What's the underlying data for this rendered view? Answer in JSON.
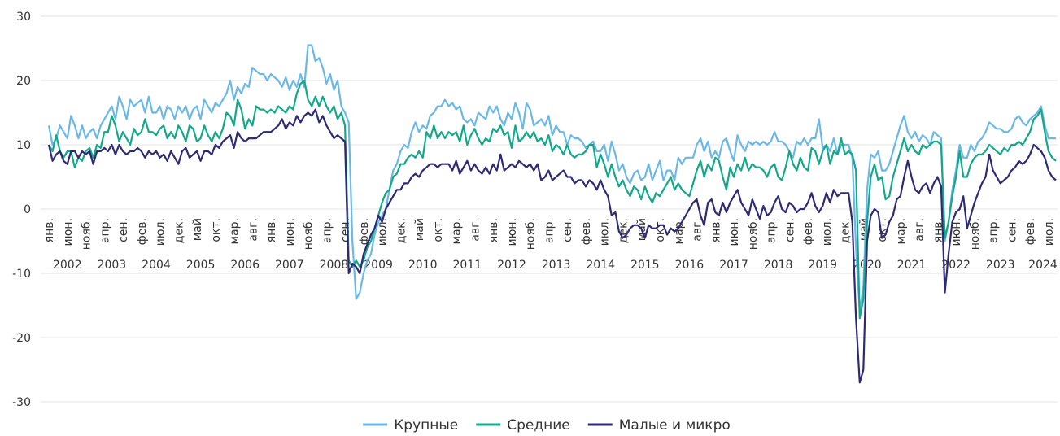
{
  "chart_data": {
    "type": "line",
    "categories": [
      "янв.",
      null,
      null,
      null,
      null,
      "июн.",
      null,
      null,
      null,
      null,
      "нояб.",
      null,
      null,
      null,
      null,
      "апр.",
      null,
      null,
      null,
      null,
      "сен.",
      null,
      null,
      null,
      null,
      "фев.",
      null,
      null,
      null,
      null,
      "июл.",
      null,
      null,
      null,
      null,
      "дек.",
      null,
      null,
      null,
      null,
      "май",
      null,
      null,
      null,
      null,
      "окт.",
      null,
      null,
      null,
      null,
      "мар.",
      null,
      null,
      null,
      null,
      "авг.",
      null,
      null,
      null,
      null,
      "янв.",
      null,
      null,
      null,
      null,
      "июн.",
      null,
      null,
      null,
      null,
      "нояб.",
      null,
      null,
      null,
      null,
      "апр.",
      null,
      null,
      null,
      null,
      "сен.",
      null,
      null,
      null,
      null,
      "фев.",
      null,
      null,
      null,
      null,
      "июл.",
      null,
      null,
      null,
      null,
      "дек.",
      null,
      null,
      null,
      null,
      "май",
      null,
      null,
      null,
      null,
      "окт.",
      null,
      null,
      null,
      null,
      "мар.",
      null,
      null,
      null,
      null,
      "авг.",
      null,
      null,
      null,
      null,
      "янв.",
      null,
      null,
      null,
      null,
      "июн.",
      null,
      null,
      null,
      null,
      "нояб.",
      null,
      null,
      null,
      null,
      "апр.",
      null,
      null,
      null,
      null,
      "сен.",
      null,
      null,
      null,
      null,
      "фев.",
      null,
      null,
      null,
      null,
      "июл.",
      null,
      null,
      null,
      null,
      "дек.",
      null,
      null,
      null,
      null,
      "май",
      null,
      null,
      null,
      null,
      "окт.",
      null,
      null,
      null,
      null,
      "мар.",
      null,
      null,
      null,
      null,
      "авг.",
      null,
      null,
      null,
      null,
      "янв.",
      null,
      null,
      null,
      null,
      "июн.",
      null,
      null,
      null,
      null,
      "нояб.",
      null,
      null,
      null,
      null,
      "апр.",
      null,
      null,
      null,
      null,
      "сен.",
      null,
      null,
      null,
      null,
      "фев.",
      null,
      null,
      null,
      null,
      "июл.",
      null,
      null,
      null,
      null,
      "дек.",
      null,
      null,
      null,
      null,
      "май",
      null,
      null,
      null,
      null,
      "окт.",
      null,
      null,
      null,
      null,
      "мар.",
      null,
      null,
      null,
      null,
      "авг.",
      null,
      null,
      null,
      null,
      "янв.",
      null,
      null,
      null,
      null,
      "июн.",
      null,
      null,
      null,
      null,
      "нояб.",
      null,
      null,
      null,
      null,
      "апр.",
      null,
      null,
      null,
      null,
      "сен.",
      null,
      null,
      null,
      null,
      "фев.",
      null,
      null,
      null,
      null,
      "июл.",
      null,
      null
    ],
    "years": [
      "2002",
      "2003",
      "2004",
      "2005",
      "2006",
      "2007",
      "2008",
      "2009",
      "2010",
      "2011",
      "2012",
      "2013",
      "2014",
      "2015",
      "2016",
      "2017",
      "2018",
      "2019",
      "2020",
      "2021",
      "2022",
      "2023",
      "2024"
    ],
    "ylim": [
      -30,
      30
    ],
    "yticks": [
      -30,
      -20,
      -10,
      0,
      10,
      20,
      30
    ],
    "grid": true,
    "legend": "bottom",
    "series": [
      {
        "name": "Крупные",
        "color": "#6bb8e6",
        "values": [
          13,
          10,
          11,
          13,
          12,
          11,
          14.5,
          13,
          11,
          13,
          11,
          12,
          12.5,
          11,
          13,
          14,
          15,
          16,
          14,
          17.5,
          16,
          14,
          17,
          16,
          16.5,
          17,
          15,
          17.5,
          15,
          15,
          16,
          14,
          16,
          15.5,
          14,
          16,
          15,
          16,
          14,
          15.5,
          16,
          14,
          17,
          16,
          15,
          16.5,
          16,
          17,
          18,
          20,
          17,
          19,
          18,
          19.5,
          19,
          22,
          21.5,
          21,
          21,
          20,
          21,
          20.5,
          20,
          19,
          20.5,
          18.5,
          20,
          19,
          21,
          19,
          25.5,
          25.5,
          23,
          23.5,
          22,
          19.5,
          21,
          18.5,
          20,
          16,
          15,
          13.5,
          -5,
          -14,
          -13,
          -10,
          -8,
          -7,
          -4,
          -2,
          -1,
          0,
          3,
          6,
          7,
          9,
          10,
          9.5,
          12,
          13.5,
          12,
          13,
          12.5,
          14.5,
          15,
          16,
          16,
          17,
          16,
          16.5,
          15.5,
          16,
          14,
          13.5,
          14,
          13,
          15,
          14.5,
          14,
          16,
          15,
          16,
          14,
          13,
          15,
          14,
          16.5,
          15,
          12.5,
          16.5,
          15.5,
          13,
          13.5,
          14,
          13,
          14.5,
          11.5,
          13,
          12,
          12,
          10,
          11.5,
          11,
          11,
          10.5,
          9.5,
          10,
          10.5,
          9,
          9,
          10,
          7.5,
          10.5,
          8.5,
          6,
          7,
          5,
          4,
          5.5,
          6,
          4.5,
          5,
          7,
          4.5,
          6,
          7.5,
          4.5,
          6,
          6,
          4.5,
          8,
          7,
          8,
          8,
          8,
          10,
          11,
          9,
          10.5,
          8,
          9,
          8,
          10.5,
          11,
          9,
          7.5,
          11.5,
          10,
          9,
          10.5,
          10,
          10.5,
          10,
          10.5,
          10,
          10.5,
          12,
          10.5,
          10.5,
          10,
          9,
          8,
          10.5,
          10,
          11,
          10,
          11,
          11,
          14,
          9.5,
          10,
          9,
          11,
          8.5,
          10,
          10,
          10,
          8,
          -6,
          -16,
          -12,
          3,
          8.5,
          8,
          9,
          6,
          6,
          7,
          9,
          11,
          13,
          14.5,
          12,
          11,
          12,
          10.5,
          11.5,
          11,
          10,
          12,
          11.5,
          11,
          -5,
          -2,
          3,
          6,
          10,
          8,
          8,
          10,
          9,
          10.5,
          11,
          12,
          13.5,
          13,
          12.5,
          12.5,
          12,
          12,
          12.5,
          14,
          14.5,
          13.5,
          13,
          14,
          14.5,
          15,
          16,
          13,
          11,
          11,
          11
        ]
      },
      {
        "name": "Средние",
        "color": "#13a88a",
        "values": [
          10,
          9,
          11.5,
          9,
          8,
          9,
          9,
          6.5,
          8,
          7.5,
          9,
          9.5,
          8,
          10,
          9.5,
          12,
          12,
          14.5,
          13,
          10.5,
          12,
          11,
          10,
          12.5,
          11.5,
          12,
          14,
          12,
          12,
          11.5,
          12.5,
          13,
          11,
          12,
          11,
          13,
          12,
          10.5,
          13,
          12.5,
          10.5,
          11,
          13,
          11.5,
          10.5,
          12,
          11,
          12.5,
          15,
          14.5,
          13,
          17,
          15.5,
          12.5,
          14,
          13,
          16,
          15.5,
          15.5,
          15,
          15.5,
          15,
          16,
          15.5,
          15,
          16,
          15.5,
          18,
          19.5,
          20,
          17,
          16,
          17.5,
          16,
          17.5,
          16,
          15,
          16,
          14,
          15,
          13,
          -8,
          -9,
          -8,
          -9,
          -8,
          -6,
          -5,
          -3,
          -1,
          1,
          2.5,
          3,
          5,
          5.5,
          7,
          7,
          8,
          8.5,
          8,
          9,
          8,
          12,
          11,
          13,
          11,
          12,
          11,
          12,
          11.5,
          12,
          10.5,
          13,
          10,
          11.5,
          12.5,
          11,
          10,
          11,
          10.5,
          12.5,
          12,
          13,
          11.5,
          12,
          9.5,
          13,
          10.5,
          11,
          12,
          11,
          12,
          10.5,
          11,
          10,
          11.5,
          9,
          10,
          9.5,
          8.5,
          10,
          8.5,
          8,
          8.5,
          8.5,
          9,
          10,
          10,
          6.5,
          8.5,
          7,
          5,
          7,
          5,
          3.5,
          4.5,
          3,
          2,
          3.5,
          3,
          1.5,
          3.5,
          2,
          1,
          2.5,
          2,
          3,
          4,
          5,
          3,
          4,
          3,
          2.5,
          2,
          4,
          6,
          7.5,
          5,
          7,
          6,
          8,
          7.5,
          5,
          3,
          6.5,
          5,
          7,
          6,
          8,
          6,
          7,
          6.5,
          6.5,
          6,
          5,
          6.5,
          7,
          5,
          4.5,
          6.5,
          9,
          7,
          6,
          8,
          6.5,
          6,
          9.5,
          9,
          7,
          9,
          10,
          7,
          9,
          8.5,
          11,
          8.5,
          9,
          8.5,
          6,
          -17,
          -14,
          -2,
          5,
          7,
          4.5,
          5,
          1.5,
          2,
          5,
          7,
          9,
          11,
          9,
          10,
          9,
          8.5,
          10,
          9.5,
          10,
          10.5,
          10.5,
          10,
          -4.5,
          -2,
          2,
          5,
          9,
          5,
          5,
          7,
          8,
          8.5,
          8.5,
          9,
          10,
          9.5,
          9,
          8.5,
          9.5,
          9,
          10,
          10,
          10.5,
          10,
          11,
          12,
          14,
          14.5,
          15.5,
          12,
          9,
          8,
          7.5
        ]
      },
      {
        "name": "Малые и микро",
        "color": "#2e2a73",
        "values": [
          10,
          7.5,
          8.5,
          9,
          7.5,
          7,
          9,
          9,
          8,
          9,
          8.5,
          9,
          7,
          9,
          9,
          9.5,
          9,
          10,
          8.5,
          10,
          9,
          8.5,
          9,
          9,
          9.5,
          9,
          8,
          9,
          8.5,
          9,
          8,
          8.5,
          7.5,
          9,
          8,
          7,
          9,
          9.5,
          8,
          8.5,
          9,
          7.5,
          9,
          9,
          8.5,
          10,
          9.5,
          10.5,
          11,
          11.5,
          9.5,
          12,
          11,
          10.5,
          11,
          11,
          11,
          11.5,
          12,
          12,
          12,
          12.5,
          13,
          14,
          12.5,
          13.5,
          13,
          14.5,
          13.5,
          14.5,
          15,
          14.5,
          15.5,
          13.5,
          14.5,
          13,
          12,
          11,
          11.5,
          11,
          10.5,
          -10,
          -8.5,
          -9,
          -10,
          -7,
          -5.5,
          -4,
          -3,
          -1,
          -2,
          0,
          1,
          2,
          3,
          3,
          4,
          4,
          5,
          5.5,
          5,
          6,
          6.5,
          7,
          7,
          6.5,
          7,
          7,
          7,
          6,
          7.5,
          5.5,
          6.5,
          7.5,
          6,
          7,
          6,
          5.5,
          6.5,
          5.5,
          7,
          6,
          8.5,
          6,
          6.5,
          7,
          6.5,
          7.5,
          7,
          6.5,
          7,
          6,
          7,
          4.5,
          5,
          6,
          4.5,
          5,
          5.5,
          6,
          5,
          5,
          4,
          4.5,
          4.5,
          3.5,
          4.5,
          4,
          3,
          4.5,
          3,
          2,
          -1,
          -0.5,
          -3.5,
          -4.5,
          -4,
          -3,
          -2.5,
          -2.5,
          -3,
          -4.5,
          -2.5,
          -3,
          -3,
          -2.5,
          -2.5,
          -4,
          -3,
          -3.5,
          -3,
          -2,
          -1,
          0,
          1,
          1.5,
          -1,
          -2.5,
          1,
          1.5,
          -0.5,
          -1,
          1,
          -0.5,
          1,
          2,
          3,
          1,
          0,
          -1,
          1.5,
          0,
          -1.5,
          0.5,
          -1,
          -0.5,
          1,
          2,
          0,
          -0.5,
          1,
          0.5,
          -0.5,
          0,
          0,
          1,
          2.5,
          0.5,
          -0.5,
          0.5,
          2.5,
          1,
          3,
          2,
          2.5,
          2.5,
          2.5,
          -2,
          -17,
          -27,
          -25,
          -5,
          -1,
          0,
          -0.5,
          -4.5,
          -4,
          -2,
          -1,
          1.5,
          2,
          5,
          7.5,
          5,
          3,
          2.5,
          3.5,
          4,
          2.5,
          4,
          5,
          3.5,
          -13,
          -7,
          -2,
          -0.5,
          0,
          2,
          -3,
          -1,
          1,
          2.5,
          4,
          5,
          8.5,
          6,
          5,
          4,
          4.5,
          5,
          6,
          6.5,
          7.5,
          7,
          7.5,
          8.5,
          10,
          9.5,
          9,
          8,
          6,
          5,
          4.5
        ]
      }
    ]
  }
}
